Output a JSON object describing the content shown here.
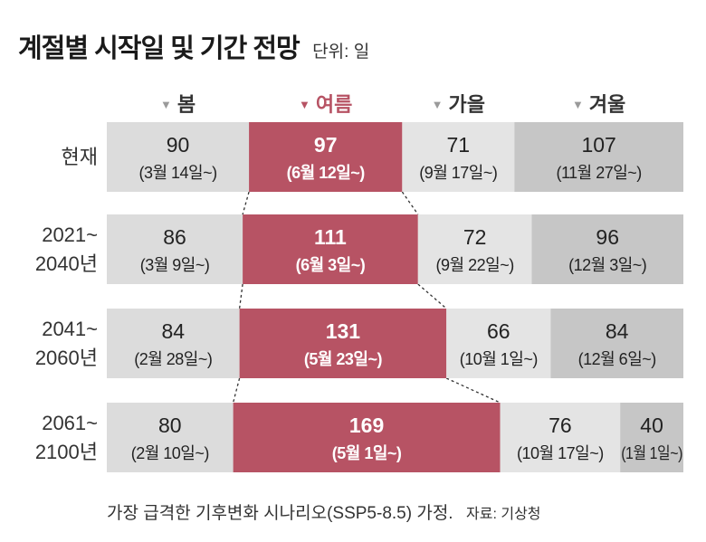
{
  "title": "계절별 시작일 및 기간 전망",
  "unit": "단위: 일",
  "footer": {
    "note": "가장 급격한 기후변화 시나리오(SSP5-8.5) 가정.",
    "source": "자료: 기상청"
  },
  "colors": {
    "spring": "#dcdcdc",
    "summer": "#b75364",
    "autumn": "#e4e4e4",
    "winter": "#c6c6c6",
    "summer_text": "#ffffff",
    "text": "#222222",
    "header_marker": "#9a9a9a"
  },
  "chart_data": {
    "type": "bar",
    "stacked": true,
    "orientation": "horizontal",
    "categories": [
      "현재",
      "2021~2040년",
      "2041~2060년",
      "2061~2100년"
    ],
    "category_lines": [
      [
        "현재"
      ],
      [
        "2021~",
        "2040년"
      ],
      [
        "2041~",
        "2060년"
      ],
      [
        "2061~",
        "2100년"
      ]
    ],
    "series": [
      {
        "name": "봄",
        "key": "spring",
        "highlight": false,
        "values": [
          90,
          86,
          84,
          80
        ],
        "starts": [
          "(3월 14일~)",
          "(3월 9일~)",
          "(2월 28일~)",
          "(2월 10일~)"
        ]
      },
      {
        "name": "여름",
        "key": "summer",
        "highlight": true,
        "values": [
          97,
          111,
          131,
          169
        ],
        "starts": [
          "(6월 12일~)",
          "(6월 3일~)",
          "(5월 23일~)",
          "(5월 1일~)"
        ]
      },
      {
        "name": "가을",
        "key": "autumn",
        "highlight": false,
        "values": [
          71,
          72,
          66,
          76
        ],
        "starts": [
          "(9월 17일~)",
          "(9월 22일~)",
          "(10월 1일~)",
          "(10월 17일~)"
        ]
      },
      {
        "name": "겨울",
        "key": "winter",
        "highlight": false,
        "values": [
          107,
          96,
          84,
          40
        ],
        "starts": [
          "(11월 27일~)",
          "(12월 3일~)",
          "(12월 6일~)",
          "(1월 1일~)"
        ]
      }
    ],
    "unit": "일"
  }
}
